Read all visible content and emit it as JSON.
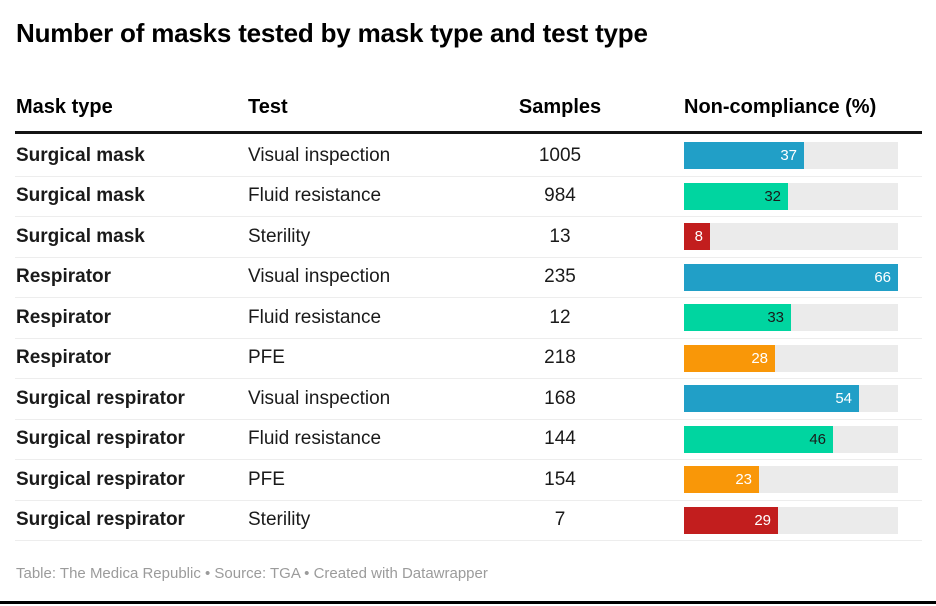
{
  "title": "Number of masks tested by mask type and test type",
  "columns": {
    "mask_type": "Mask type",
    "test": "Test",
    "samples": "Samples",
    "non_compliance": "Non-compliance (%)"
  },
  "footer": {
    "text": "Table: The Medica Republic • Source: TGA • Created with Datawrapper"
  },
  "colors": {
    "blue": "#219fc7",
    "green": "#00d5a0",
    "orange": "#f99708",
    "red": "#c21e1e",
    "bar_track": "#ebebeb",
    "label_light": "#ffffff",
    "label_dark": "#1a1a1a",
    "header_rule": "#141414",
    "row_separator": "#ededed",
    "footer_text": "#9b9b9b"
  },
  "chart_data": {
    "type": "table",
    "title": "Number of masks tested by mask type and test type",
    "columns": [
      "Mask type",
      "Test",
      "Samples",
      "Non-compliance (%)"
    ],
    "bar_column": "Non-compliance (%)",
    "bar_scale_max": 66,
    "rows": [
      {
        "mask_type": "Surgical mask",
        "test": "Visual inspection",
        "samples": "1005",
        "non_compliance": 37,
        "bar_color": "blue",
        "label_color": "light"
      },
      {
        "mask_type": "Surgical mask",
        "test": "Fluid resistance",
        "samples": "984",
        "non_compliance": 32,
        "bar_color": "green",
        "label_color": "dark"
      },
      {
        "mask_type": "Surgical mask",
        "test": "Sterility",
        "samples": "13",
        "non_compliance": 8,
        "bar_color": "red",
        "label_color": "light"
      },
      {
        "mask_type": "Respirator",
        "test": "Visual inspection",
        "samples": "235",
        "non_compliance": 66,
        "bar_color": "blue",
        "label_color": "light"
      },
      {
        "mask_type": "Respirator",
        "test": "Fluid resistance",
        "samples": "12",
        "non_compliance": 33,
        "bar_color": "green",
        "label_color": "dark"
      },
      {
        "mask_type": "Respirator",
        "test": "PFE",
        "samples": "218",
        "non_compliance": 28,
        "bar_color": "orange",
        "label_color": "light"
      },
      {
        "mask_type": "Surgical respirator",
        "test": "Visual inspection",
        "samples": "168",
        "non_compliance": 54,
        "bar_color": "blue",
        "label_color": "light"
      },
      {
        "mask_type": "Surgical respirator",
        "test": "Fluid resistance",
        "samples": "144",
        "non_compliance": 46,
        "bar_color": "green",
        "label_color": "dark"
      },
      {
        "mask_type": "Surgical respirator",
        "test": "PFE",
        "samples": "154",
        "non_compliance": 23,
        "bar_color": "orange",
        "label_color": "light"
      },
      {
        "mask_type": "Surgical respirator",
        "test": "Sterility",
        "samples": "7",
        "non_compliance": 29,
        "bar_color": "red",
        "label_color": "light"
      }
    ]
  }
}
